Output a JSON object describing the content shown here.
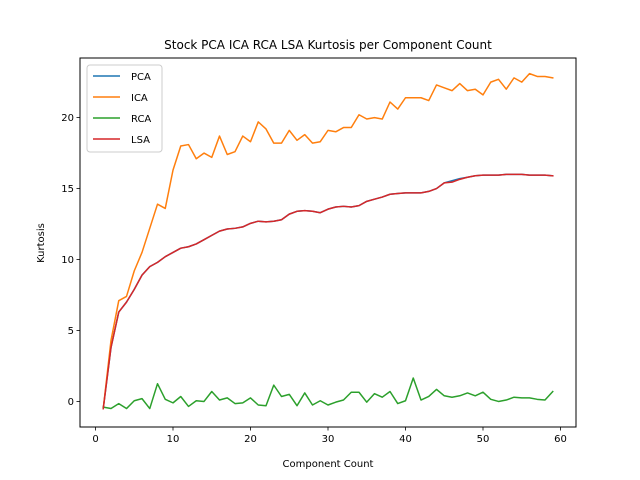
{
  "chart_data": {
    "type": "line",
    "title": "Stock PCA ICA RCA LSA Kurtosis per Component Count",
    "xlabel": "Component Count",
    "ylabel": "Kurtosis",
    "xlim": [
      -2,
      62
    ],
    "ylim": [
      -1.8,
      24.2
    ],
    "xticks": [
      0,
      10,
      20,
      30,
      40,
      50,
      60
    ],
    "yticks": [
      0,
      5,
      10,
      15,
      20
    ],
    "grid": false,
    "legend": "top-left",
    "x_start": 1,
    "x_end": 59,
    "series": [
      {
        "name": "PCA",
        "color": "#1f77b4",
        "values": [
          -0.5,
          3.8,
          6.3,
          7.0,
          7.9,
          8.9,
          9.5,
          9.8,
          10.2,
          10.5,
          10.8,
          10.9,
          11.1,
          11.4,
          11.7,
          12.0,
          12.15,
          12.2,
          12.3,
          12.55,
          12.7,
          12.65,
          12.7,
          12.8,
          13.2,
          13.4,
          13.45,
          13.4,
          13.3,
          13.55,
          13.7,
          13.75,
          13.7,
          13.8,
          14.1,
          14.25,
          14.4,
          14.6,
          14.65,
          14.7,
          14.7,
          14.7,
          14.8,
          15.0,
          15.4,
          15.55,
          15.7,
          15.8,
          15.9,
          15.95,
          15.95,
          15.95,
          16.0,
          16.0,
          16.0,
          15.95,
          15.95,
          15.95,
          15.9
        ]
      },
      {
        "name": "ICA",
        "color": "#ff7f0e",
        "values": [
          -0.5,
          4.3,
          7.1,
          7.4,
          9.2,
          10.5,
          12.2,
          13.9,
          13.6,
          16.3,
          18.0,
          18.1,
          17.1,
          17.5,
          17.2,
          18.7,
          17.4,
          17.6,
          18.7,
          18.3,
          19.7,
          19.2,
          18.2,
          18.2,
          19.1,
          18.4,
          18.8,
          18.2,
          18.3,
          19.1,
          19.0,
          19.3,
          19.3,
          20.2,
          19.9,
          20.0,
          19.9,
          21.1,
          20.6,
          21.4,
          21.4,
          21.4,
          21.2,
          22.3,
          22.1,
          21.9,
          22.4,
          21.9,
          22.0,
          21.6,
          22.5,
          22.7,
          22.0,
          22.8,
          22.5,
          23.1,
          22.9,
          22.9,
          22.8
        ]
      },
      {
        "name": "RCA",
        "color": "#2ca02c",
        "values": [
          -0.4,
          -0.5,
          -0.15,
          -0.5,
          0.05,
          0.2,
          -0.5,
          1.25,
          0.15,
          -0.1,
          0.35,
          -0.35,
          0.05,
          0.0,
          0.7,
          0.1,
          0.25,
          -0.15,
          -0.1,
          0.25,
          -0.25,
          -0.3,
          1.15,
          0.35,
          0.5,
          -0.3,
          0.6,
          -0.25,
          0.05,
          -0.25,
          -0.05,
          0.1,
          0.65,
          0.65,
          -0.05,
          0.55,
          0.3,
          0.7,
          -0.15,
          0.05,
          1.65,
          0.1,
          0.35,
          0.85,
          0.4,
          0.3,
          0.4,
          0.6,
          0.4,
          0.65,
          0.15,
          0.0,
          0.1,
          0.3,
          0.25,
          0.25,
          0.15,
          0.1,
          0.7
        ]
      },
      {
        "name": "LSA",
        "color": "#d62728",
        "values": [
          -0.5,
          3.8,
          6.3,
          7.0,
          7.9,
          8.9,
          9.5,
          9.8,
          10.2,
          10.5,
          10.8,
          10.9,
          11.1,
          11.4,
          11.7,
          12.0,
          12.15,
          12.2,
          12.3,
          12.55,
          12.7,
          12.65,
          12.7,
          12.8,
          13.2,
          13.4,
          13.45,
          13.4,
          13.3,
          13.55,
          13.7,
          13.75,
          13.7,
          13.8,
          14.1,
          14.25,
          14.4,
          14.6,
          14.65,
          14.7,
          14.7,
          14.7,
          14.8,
          15.0,
          15.4,
          15.45,
          15.65,
          15.8,
          15.9,
          15.95,
          15.95,
          15.95,
          16.0,
          16.0,
          16.0,
          15.95,
          15.95,
          15.95,
          15.9
        ]
      }
    ]
  }
}
